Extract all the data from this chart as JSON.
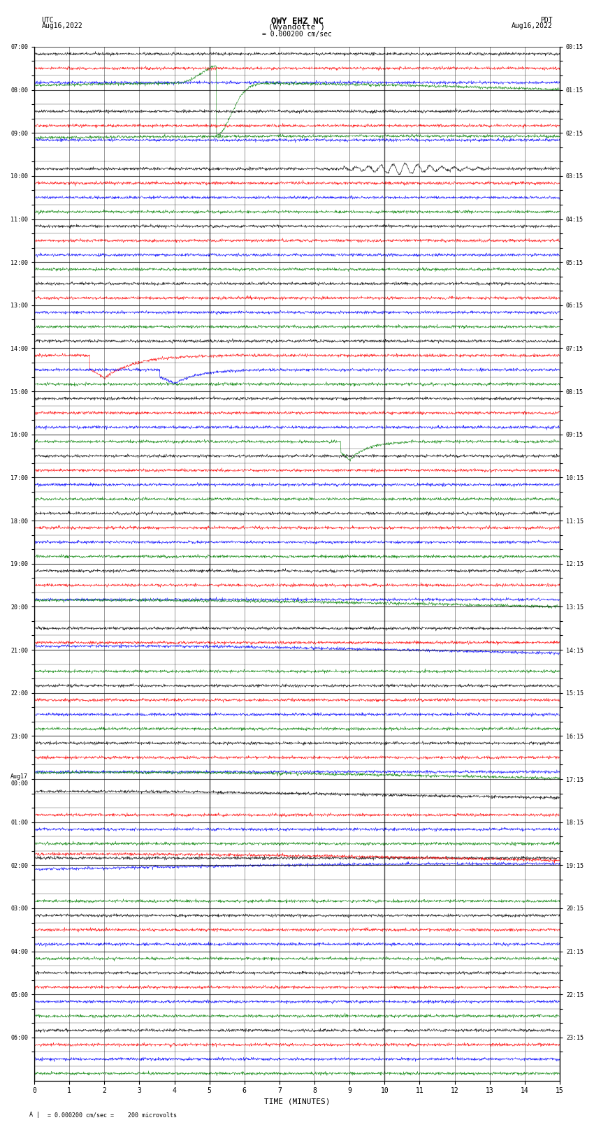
{
  "title_line1": "OWY EHZ NC",
  "title_line2": "(Wyandotte )",
  "scale_label": "= 0.000200 cm/sec",
  "left_label_top": "UTC",
  "left_label_date": "Aug16,2022",
  "right_label_top": "PDT",
  "right_label_date": "Aug16,2022",
  "bottom_label": "TIME (MINUTES)",
  "footer_label": "= 0.000200 cm/sec =    200 microvolts",
  "utc_times": [
    "07:00",
    "",
    "",
    "08:00",
    "",
    "",
    "09:00",
    "",
    "",
    "10:00",
    "",
    "",
    "11:00",
    "",
    "",
    "12:00",
    "",
    "",
    "13:00",
    "",
    "",
    "14:00",
    "",
    "",
    "15:00",
    "",
    "",
    "16:00",
    "",
    "",
    "17:00",
    "",
    "",
    "18:00",
    "",
    "",
    "19:00",
    "",
    "",
    "20:00",
    "",
    "",
    "21:00",
    "",
    "",
    "22:00",
    "",
    "",
    "23:00",
    "",
    "",
    "Aug17\n00:00",
    "",
    "",
    "01:00",
    "",
    "",
    "02:00",
    "",
    "",
    "03:00",
    "",
    "",
    "04:00",
    "",
    "",
    "05:00",
    "",
    "",
    "06:00",
    ""
  ],
  "pdt_times": [
    "00:15",
    "",
    "",
    "01:15",
    "",
    "",
    "02:15",
    "",
    "",
    "03:15",
    "",
    "",
    "04:15",
    "",
    "",
    "05:15",
    "",
    "",
    "06:15",
    "",
    "",
    "07:15",
    "",
    "",
    "08:15",
    "",
    "",
    "09:15",
    "",
    "",
    "10:15",
    "",
    "",
    "11:15",
    "",
    "",
    "12:15",
    "",
    "",
    "13:15",
    "",
    "",
    "14:15",
    "",
    "",
    "15:15",
    "",
    "",
    "16:15",
    "",
    "",
    "17:15",
    "",
    "",
    "18:15",
    "",
    "",
    "19:15",
    "",
    "",
    "20:15",
    "",
    "",
    "21:15",
    "",
    "",
    "22:15",
    "",
    "",
    "23:15",
    ""
  ],
  "n_rows": 72,
  "n_minutes": 15,
  "bg_color": "#ffffff",
  "trace_colors": [
    "#000000",
    "#ff0000",
    "#0000ff",
    "#008000"
  ],
  "grid_color": "#000000",
  "noise_amplitude": 0.08,
  "seed": 42
}
